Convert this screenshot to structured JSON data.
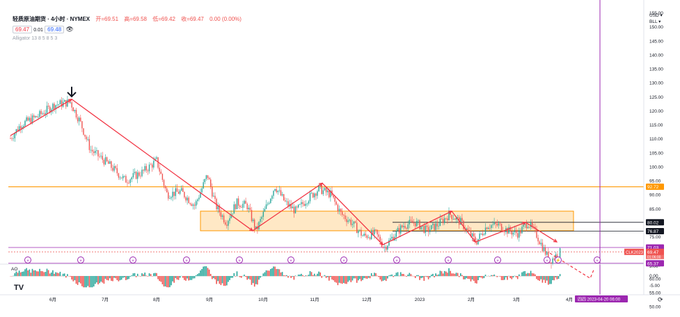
{
  "legend": {
    "title": "轻质原油期货 · 4小时 · NYMEX",
    "open": "开=69.51",
    "high": "高=69.58",
    "low": "低=69.42",
    "close": "收=69.47",
    "change": "0.00 (0.00%)",
    "bid": "69.47",
    "spread": "0.01",
    "ask": "69.48",
    "alligator": "Alligator 13 8 5 8 5 3",
    "ao_label": "AO"
  },
  "axis": {
    "currency": "USD",
    "unit": "BLL",
    "cur_symbol": "CLK2023",
    "countdown": "01:06:00",
    "time_badge": "四四 2023-04-20",
    "time_badge_b": "06:00"
  },
  "colors": {
    "up": "#26a69a",
    "down": "#ef5350",
    "trend": "#f23645",
    "orange": "#ff9800",
    "zone": "#ffe0b2",
    "purple": "#9c27b0",
    "dark": "#131722"
  },
  "chart_data": {
    "type": "candlestick",
    "title": "轻质原油期货 · 4小时 · NYMEX",
    "y_range": [
      -6,
      155
    ],
    "price_ticks": [
      155,
      150,
      145,
      140,
      135,
      130,
      125,
      120,
      115,
      110,
      105,
      100,
      95,
      90,
      85,
      80,
      75,
      70,
      65,
      60,
      55,
      50,
      45
    ],
    "ao_ticks": [
      "5.00",
      "0.00",
      "-5.00"
    ],
    "x_labels": [
      {
        "label": "6月",
        "x": 76
      },
      {
        "label": "7月",
        "x": 151
      },
      {
        "label": "8月",
        "x": 225
      },
      {
        "label": "9月",
        "x": 301
      },
      {
        "label": "10月",
        "x": 378
      },
      {
        "label": "11月",
        "x": 452
      },
      {
        "label": "12月",
        "x": 527
      },
      {
        "label": "2023",
        "x": 603
      },
      {
        "label": "2月",
        "x": 677
      },
      {
        "label": "3月",
        "x": 742
      },
      {
        "label": "4月",
        "x": 818
      }
    ],
    "price_path": [
      [
        15,
        110
      ],
      [
        30,
        115
      ],
      [
        55,
        118
      ],
      [
        78,
        122
      ],
      [
        101,
        123
      ],
      [
        115,
        116
      ],
      [
        130,
        106
      ],
      [
        155,
        101
      ],
      [
        180,
        95
      ],
      [
        205,
        98
      ],
      [
        225,
        102
      ],
      [
        240,
        90
      ],
      [
        260,
        91
      ],
      [
        280,
        86
      ],
      [
        298,
        97
      ],
      [
        310,
        86
      ],
      [
        325,
        80
      ],
      [
        340,
        87
      ],
      [
        355,
        86
      ],
      [
        368,
        77
      ],
      [
        380,
        84
      ],
      [
        395,
        93
      ],
      [
        410,
        87
      ],
      [
        425,
        84
      ],
      [
        440,
        88
      ],
      [
        458,
        92
      ],
      [
        475,
        90
      ],
      [
        490,
        83
      ],
      [
        505,
        80
      ],
      [
        522,
        75
      ],
      [
        540,
        76
      ],
      [
        552,
        71
      ],
      [
        565,
        75
      ],
      [
        580,
        79
      ],
      [
        597,
        80
      ],
      [
        613,
        77
      ],
      [
        628,
        79
      ],
      [
        646,
        83
      ],
      [
        662,
        80
      ],
      [
        684,
        73
      ],
      [
        700,
        79
      ],
      [
        716,
        79
      ],
      [
        730,
        77
      ],
      [
        745,
        76
      ],
      [
        758,
        80
      ],
      [
        770,
        76
      ],
      [
        782,
        70
      ],
      [
        790,
        66
      ],
      [
        798,
        68
      ],
      [
        806,
        69.5
      ]
    ],
    "levels": [
      {
        "price": 92.72,
        "label": "92.72",
        "color": "#ff9800"
      },
      {
        "price": 80.02,
        "label": "80.02",
        "color": "#131722"
      },
      {
        "price": 76.87,
        "label": "76.87",
        "color": "#131722"
      },
      {
        "price": 71.03,
        "label": "71.03",
        "color": "#9c27b0"
      },
      {
        "price": 69.47,
        "label": "69.47",
        "color": "#ef5350"
      },
      {
        "price": 65.37,
        "label": "65.37",
        "color": "#9c27b0"
      }
    ],
    "zone": {
      "x1": 288,
      "x2": 824,
      "top": 84,
      "bottom": 77
    },
    "trend_lines": [
      [
        15,
        111
      ],
      [
        103,
        124
      ],
      [
        363,
        77
      ],
      [
        463,
        94
      ],
      [
        550,
        72
      ],
      [
        649,
        84
      ],
      [
        683,
        73
      ],
      [
        755,
        80
      ],
      [
        800,
        73
      ]
    ],
    "trend_dashed": [
      [
        790,
        69
      ],
      [
        848,
        60
      ],
      [
        853,
        63
      ]
    ],
    "arrow": {
      "x": 103,
      "price": 124
    }
  }
}
